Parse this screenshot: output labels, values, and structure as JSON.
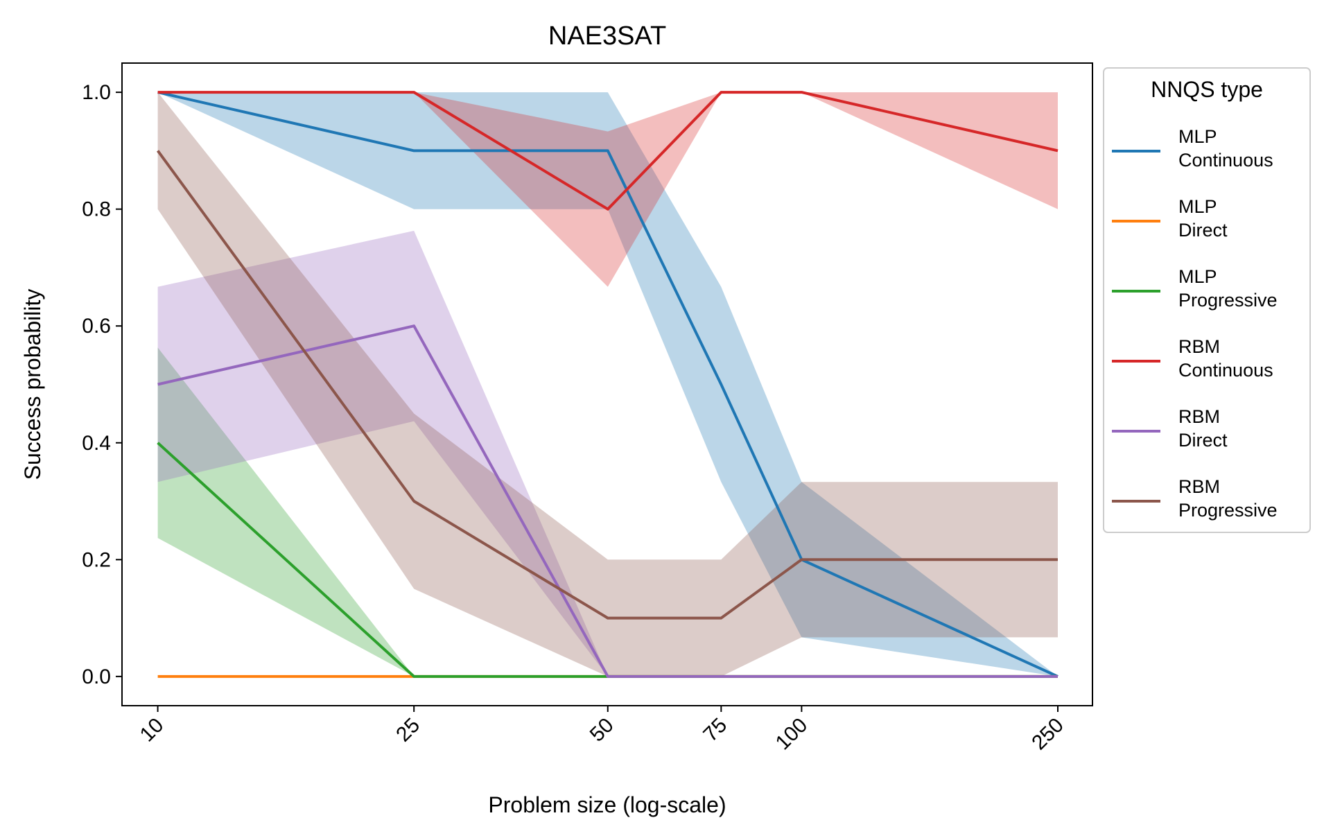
{
  "chart_data": {
    "type": "line",
    "title": "NAE3SAT",
    "xlabel": "Problem size (log-scale)",
    "ylabel": "Success probability",
    "xscale": "log",
    "x": [
      10,
      25,
      50,
      75,
      100,
      250
    ],
    "x_tick_labels": [
      "10",
      "25",
      "50",
      "75",
      "100",
      "250"
    ],
    "ylim": [
      -0.05,
      1.05
    ],
    "y_ticks": [
      0.0,
      0.2,
      0.4,
      0.6,
      0.8,
      1.0
    ],
    "y_tick_labels": [
      "0.0",
      "0.2",
      "0.4",
      "0.6",
      "0.8",
      "1.0"
    ],
    "grid": false,
    "legend": {
      "title": "NNQS type",
      "placement": "outside-right"
    },
    "series": [
      {
        "name_line1": "MLP",
        "name_line2": "Continuous",
        "color": "#1f77b4",
        "values": [
          1.0,
          0.9,
          0.9,
          0.5,
          0.2,
          0.0
        ],
        "lower": [
          1.0,
          0.8,
          0.8,
          0.333,
          0.067,
          0.0
        ],
        "upper": [
          1.0,
          1.0,
          1.0,
          0.667,
          0.333,
          0.0
        ]
      },
      {
        "name_line1": "MLP",
        "name_line2": "Direct",
        "color": "#ff7f0e",
        "values": [
          0.0,
          0.0,
          0.0,
          0.0,
          0.0,
          0.0
        ],
        "lower": [
          0.0,
          0.0,
          0.0,
          0.0,
          0.0,
          0.0
        ],
        "upper": [
          0.0,
          0.0,
          0.0,
          0.0,
          0.0,
          0.0
        ]
      },
      {
        "name_line1": "MLP",
        "name_line2": "Progressive",
        "color": "#2ca02c",
        "values": [
          0.4,
          0.0,
          0.0,
          0.0,
          0.0,
          0.0
        ],
        "lower": [
          0.237,
          0.0,
          0.0,
          0.0,
          0.0,
          0.0
        ],
        "upper": [
          0.563,
          0.0,
          0.0,
          0.0,
          0.0,
          0.0
        ]
      },
      {
        "name_line1": "RBM",
        "name_line2": "Continuous",
        "color": "#d62728",
        "values": [
          1.0,
          1.0,
          0.8,
          1.0,
          1.0,
          0.9
        ],
        "lower": [
          1.0,
          1.0,
          0.667,
          1.0,
          1.0,
          0.8
        ],
        "upper": [
          1.0,
          1.0,
          0.933,
          1.0,
          1.0,
          1.0
        ]
      },
      {
        "name_line1": "RBM",
        "name_line2": "Direct",
        "color": "#9467bd",
        "values": [
          0.5,
          0.6,
          0.0,
          0.0,
          0.0,
          0.0
        ],
        "lower": [
          0.333,
          0.437,
          0.0,
          0.0,
          0.0,
          0.0
        ],
        "upper": [
          0.667,
          0.763,
          0.0,
          0.0,
          0.0,
          0.0
        ]
      },
      {
        "name_line1": "RBM",
        "name_line2": "Progressive",
        "color": "#8c564b",
        "values": [
          0.9,
          0.3,
          0.1,
          0.1,
          0.2,
          0.2
        ],
        "lower": [
          0.8,
          0.15,
          0.0,
          0.0,
          0.067,
          0.067
        ],
        "upper": [
          1.0,
          0.45,
          0.2,
          0.2,
          0.333,
          0.333
        ]
      }
    ]
  }
}
